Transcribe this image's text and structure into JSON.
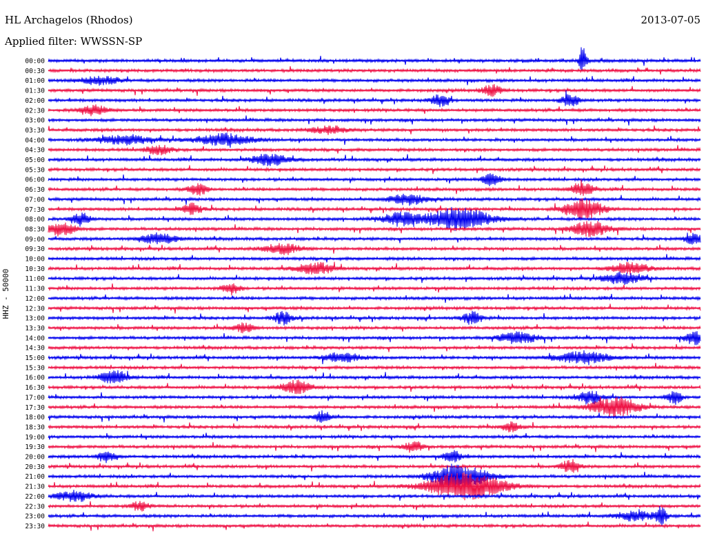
{
  "header": {
    "station": "HL Archagelos (Rhodos)",
    "date": "2013-07-05",
    "filter": "Applied filter: WWSSN-SP"
  },
  "chart_data": {
    "type": "line",
    "ylabel": "HHZ - 50000",
    "row_labels": [
      "00:00",
      "00:30",
      "01:00",
      "01:30",
      "02:00",
      "02:30",
      "03:00",
      "03:30",
      "04:00",
      "04:30",
      "05:00",
      "05:30",
      "06:00",
      "06:30",
      "07:00",
      "07:30",
      "08:00",
      "08:30",
      "09:00",
      "09:30",
      "10:00",
      "10:30",
      "11:00",
      "11:30",
      "12:00",
      "12:30",
      "13:00",
      "13:30",
      "14:00",
      "14:30",
      "15:00",
      "15:30",
      "16:00",
      "16:30",
      "17:00",
      "17:30",
      "18:00",
      "18:30",
      "19:00",
      "19:30",
      "20:00",
      "20:30",
      "21:00",
      "21:30",
      "22:00",
      "22:30",
      "23:00",
      "23:30"
    ],
    "series_colors": [
      "#0000ee",
      "#ee1144"
    ],
    "grid": false,
    "legend": "none",
    "trace_minutes": 30,
    "events": [
      {
        "row": 0,
        "t": 0.82,
        "amp": 18,
        "dur": 0.004
      },
      {
        "row": 2,
        "t": 0.08,
        "amp": 6,
        "dur": 0.02
      },
      {
        "row": 3,
        "t": 0.68,
        "amp": 8,
        "dur": 0.01
      },
      {
        "row": 4,
        "t": 0.6,
        "amp": 8,
        "dur": 0.01
      },
      {
        "row": 4,
        "t": 0.8,
        "amp": 9,
        "dur": 0.01
      },
      {
        "row": 5,
        "t": 0.07,
        "amp": 7,
        "dur": 0.015
      },
      {
        "row": 7,
        "t": 0.43,
        "amp": 5,
        "dur": 0.02
      },
      {
        "row": 8,
        "t": 0.27,
        "amp": 8,
        "dur": 0.03
      },
      {
        "row": 8,
        "t": 0.12,
        "amp": 6,
        "dur": 0.03
      },
      {
        "row": 9,
        "t": 0.17,
        "amp": 6,
        "dur": 0.015
      },
      {
        "row": 10,
        "t": 0.34,
        "amp": 8,
        "dur": 0.02
      },
      {
        "row": 12,
        "t": 0.68,
        "amp": 9,
        "dur": 0.01
      },
      {
        "row": 13,
        "t": 0.23,
        "amp": 8,
        "dur": 0.01
      },
      {
        "row": 13,
        "t": 0.82,
        "amp": 9,
        "dur": 0.012
      },
      {
        "row": 14,
        "t": 0.55,
        "amp": 8,
        "dur": 0.02
      },
      {
        "row": 15,
        "t": 0.22,
        "amp": 9,
        "dur": 0.01
      },
      {
        "row": 15,
        "t": 0.82,
        "amp": 16,
        "dur": 0.02
      },
      {
        "row": 16,
        "t": 0.63,
        "amp": 16,
        "dur": 0.035
      },
      {
        "row": 16,
        "t": 0.54,
        "amp": 9,
        "dur": 0.02
      },
      {
        "row": 16,
        "t": 0.05,
        "amp": 9,
        "dur": 0.01
      },
      {
        "row": 17,
        "t": 0.02,
        "amp": 10,
        "dur": 0.015
      },
      {
        "row": 17,
        "t": 0.83,
        "amp": 11,
        "dur": 0.02
      },
      {
        "row": 18,
        "t": 0.17,
        "amp": 8,
        "dur": 0.02
      },
      {
        "row": 18,
        "t": 0.99,
        "amp": 8,
        "dur": 0.01
      },
      {
        "row": 19,
        "t": 0.36,
        "amp": 7,
        "dur": 0.02
      },
      {
        "row": 21,
        "t": 0.41,
        "amp": 8,
        "dur": 0.02
      },
      {
        "row": 21,
        "t": 0.89,
        "amp": 8,
        "dur": 0.02
      },
      {
        "row": 22,
        "t": 0.88,
        "amp": 8,
        "dur": 0.02
      },
      {
        "row": 23,
        "t": 0.28,
        "amp": 7,
        "dur": 0.01
      },
      {
        "row": 26,
        "t": 0.36,
        "amp": 9,
        "dur": 0.01
      },
      {
        "row": 26,
        "t": 0.65,
        "amp": 9,
        "dur": 0.01
      },
      {
        "row": 27,
        "t": 0.3,
        "amp": 7,
        "dur": 0.01
      },
      {
        "row": 28,
        "t": 0.72,
        "amp": 8,
        "dur": 0.02
      },
      {
        "row": 28,
        "t": 0.99,
        "amp": 10,
        "dur": 0.01
      },
      {
        "row": 30,
        "t": 0.45,
        "amp": 7,
        "dur": 0.02
      },
      {
        "row": 30,
        "t": 0.82,
        "amp": 8,
        "dur": 0.03
      },
      {
        "row": 32,
        "t": 0.1,
        "amp": 9,
        "dur": 0.015
      },
      {
        "row": 33,
        "t": 0.38,
        "amp": 10,
        "dur": 0.015
      },
      {
        "row": 34,
        "t": 0.83,
        "amp": 10,
        "dur": 0.012
      },
      {
        "row": 34,
        "t": 0.96,
        "amp": 10,
        "dur": 0.008
      },
      {
        "row": 35,
        "t": 0.87,
        "amp": 14,
        "dur": 0.025
      },
      {
        "row": 36,
        "t": 0.42,
        "amp": 8,
        "dur": 0.01
      },
      {
        "row": 37,
        "t": 0.71,
        "amp": 7,
        "dur": 0.01
      },
      {
        "row": 39,
        "t": 0.56,
        "amp": 8,
        "dur": 0.01
      },
      {
        "row": 40,
        "t": 0.09,
        "amp": 8,
        "dur": 0.01
      },
      {
        "row": 40,
        "t": 0.62,
        "amp": 8,
        "dur": 0.01
      },
      {
        "row": 41,
        "t": 0.8,
        "amp": 9,
        "dur": 0.01
      },
      {
        "row": 42,
        "t": 0.63,
        "amp": 18,
        "dur": 0.03
      },
      {
        "row": 43,
        "t": 0.64,
        "amp": 20,
        "dur": 0.04
      },
      {
        "row": 44,
        "t": 0.04,
        "amp": 7,
        "dur": 0.02
      },
      {
        "row": 45,
        "t": 0.14,
        "amp": 6,
        "dur": 0.01
      },
      {
        "row": 46,
        "t": 0.94,
        "amp": 12,
        "dur": 0.006
      },
      {
        "row": 46,
        "t": 0.9,
        "amp": 7,
        "dur": 0.02
      }
    ]
  }
}
